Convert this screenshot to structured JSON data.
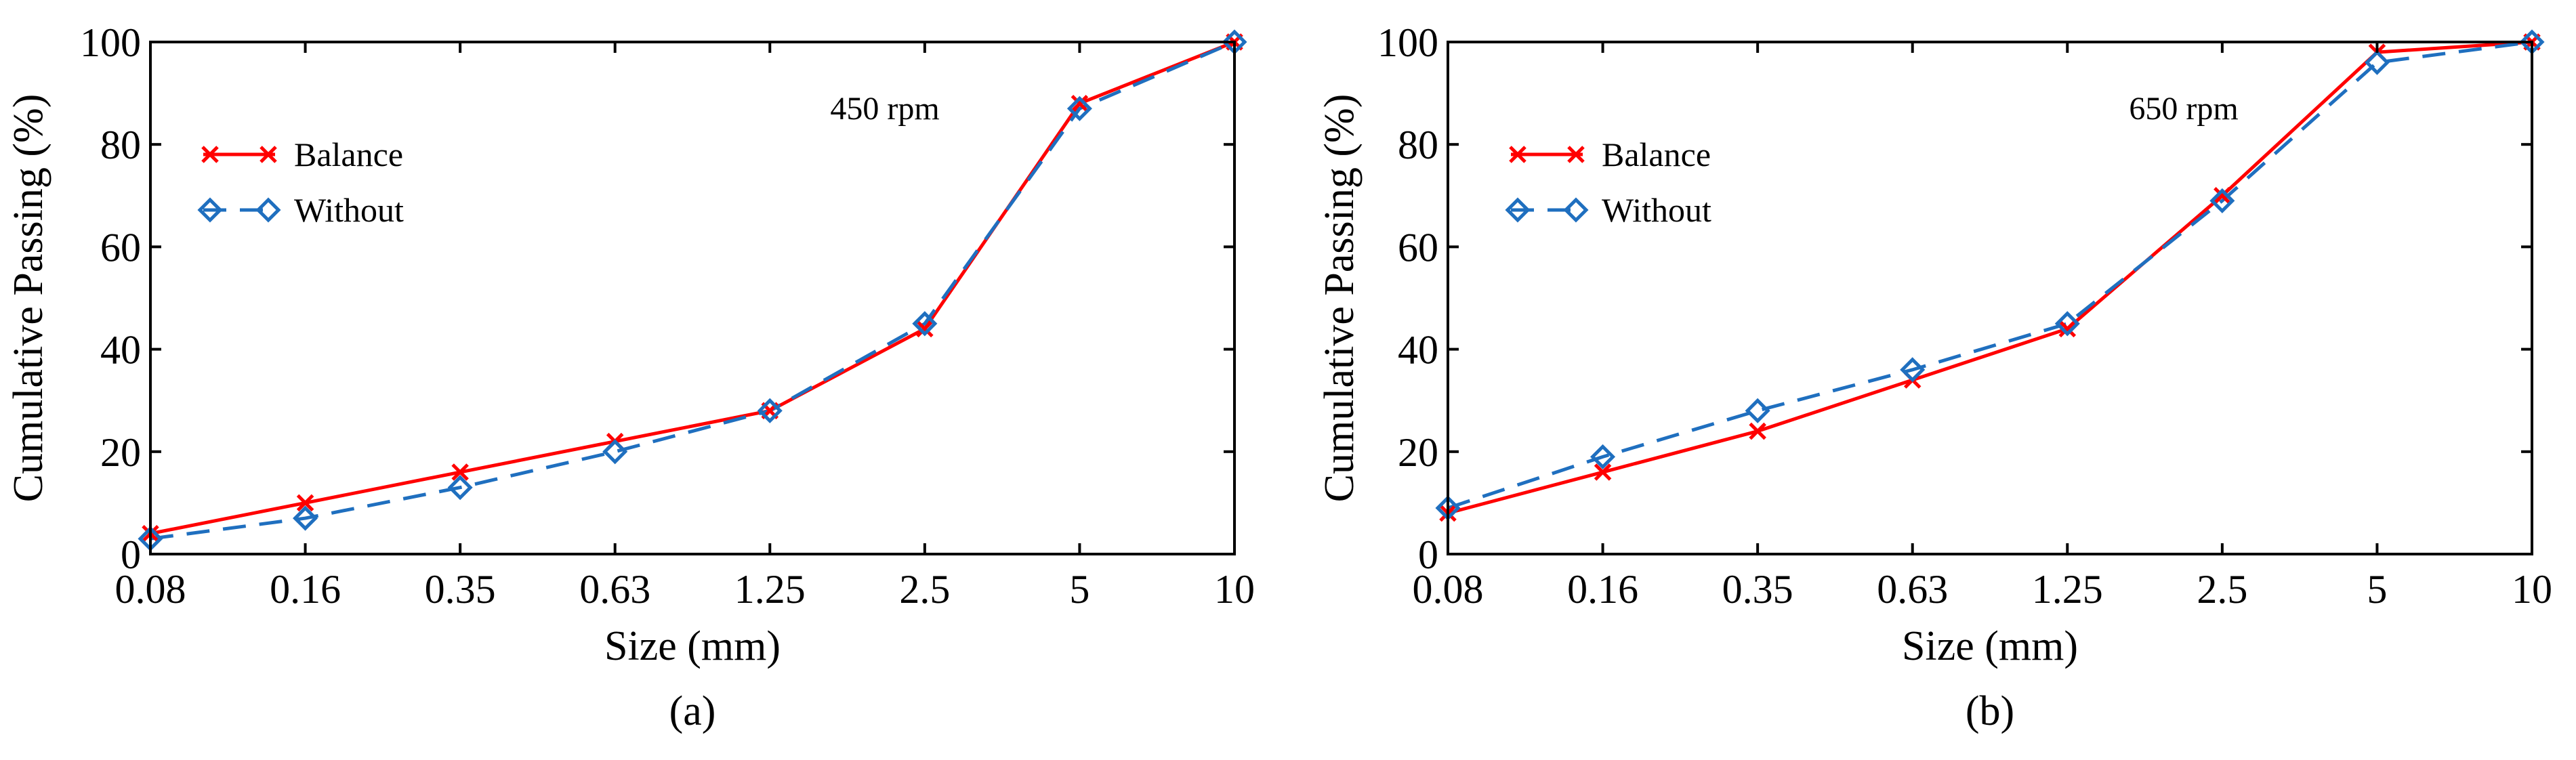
{
  "chart_data": [
    {
      "type": "line",
      "panel_label": "(a)",
      "annotation": "450 rpm",
      "xlabel": "Size (mm)",
      "ylabel": "Cumulative Passing (%)",
      "categories": [
        "0.08",
        "0.16",
        "0.35",
        "0.63",
        "1.25",
        "2.5",
        "5",
        "10"
      ],
      "yticks": [
        "0",
        "20",
        "40",
        "60",
        "80",
        "100"
      ],
      "ylim": [
        0,
        100
      ],
      "grid": false,
      "legend_position": "upper-left",
      "series": [
        {
          "name": "Balance",
          "color": "#ff0000",
          "marker": "x",
          "dash": "solid",
          "values": [
            4,
            10,
            16,
            22,
            28,
            44,
            88,
            100
          ]
        },
        {
          "name": "Without",
          "color": "#1f6fbf",
          "marker": "diamond",
          "dash": "dashed",
          "values": [
            3,
            7,
            13,
            20,
            28,
            45,
            87,
            100
          ]
        }
      ]
    },
    {
      "type": "line",
      "panel_label": "(b)",
      "annotation": "650 rpm",
      "xlabel": "Size (mm)",
      "ylabel": "Cumulative Passing (%)",
      "categories": [
        "0.08",
        "0.16",
        "0.35",
        "0.63",
        "1.25",
        "2.5",
        "5",
        "10"
      ],
      "yticks": [
        "0",
        "20",
        "40",
        "60",
        "80",
        "100"
      ],
      "ylim": [
        0,
        100
      ],
      "grid": false,
      "legend_position": "upper-left",
      "series": [
        {
          "name": "Balance",
          "color": "#ff0000",
          "marker": "x",
          "dash": "solid",
          "values": [
            8,
            16,
            24,
            34,
            44,
            70,
            98,
            100
          ]
        },
        {
          "name": "Without",
          "color": "#1f6fbf",
          "marker": "diamond",
          "dash": "dashed",
          "values": [
            9,
            19,
            28,
            36,
            45,
            69,
            96,
            100
          ]
        }
      ]
    }
  ]
}
